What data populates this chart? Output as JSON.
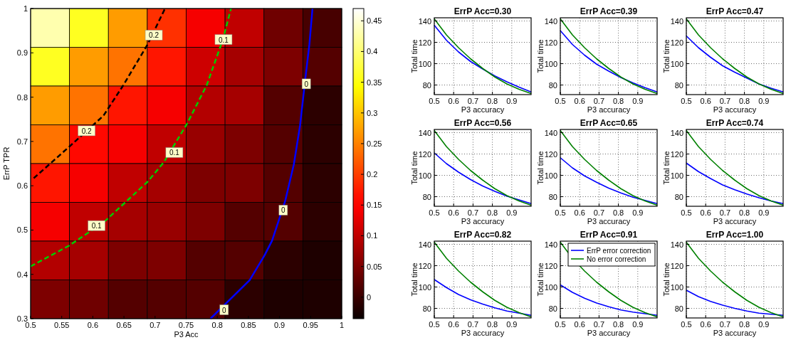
{
  "chart_data": [
    {
      "type": "heatmap",
      "xlabel": "P3 Acc",
      "ylabel": "ErrP TPR",
      "cells": [
        [
          0.43,
          0.36,
          0.27,
          0.19,
          0.14,
          0.1,
          0.04,
          0.01
        ],
        [
          0.36,
          0.27,
          0.24,
          0.17,
          0.11,
          0.08,
          0.05,
          0.02
        ],
        [
          0.27,
          0.24,
          0.17,
          0.14,
          0.09,
          0.08,
          0.02,
          -0.01
        ],
        [
          0.24,
          0.16,
          0.14,
          0.1,
          0.07,
          0.05,
          0.02,
          -0.01
        ],
        [
          0.17,
          0.14,
          0.1,
          0.08,
          0.05,
          0.05,
          0.02,
          -0.01
        ],
        [
          0.14,
          0.1,
          0.08,
          0.07,
          0.05,
          0.02,
          0.02,
          -0.01
        ],
        [
          0.09,
          0.08,
          0.05,
          0.05,
          0.02,
          0.02,
          -0.01,
          -0.02
        ],
        [
          0.05,
          0.04,
          0.02,
          0.02,
          0.02,
          -0.01,
          -0.02,
          -0.02
        ]
      ],
      "xlim": [
        0.5,
        1
      ],
      "xticks": [
        0.5,
        0.55,
        0.6,
        0.65,
        0.7,
        0.75,
        0.8,
        0.85,
        0.9,
        0.95,
        1
      ],
      "ylim": [
        0.3,
        1
      ],
      "yticks": [
        0.3,
        0.4,
        0.5,
        0.6,
        0.7,
        0.8,
        0.9,
        1
      ],
      "clim": [
        -0.035,
        0.47
      ],
      "cticks": [
        0,
        0.05,
        0.1,
        0.15,
        0.2,
        0.25,
        0.3,
        0.35,
        0.4,
        0.45
      ],
      "series": [
        {
          "type": "line",
          "color": "#000000",
          "line_style": "dashed",
          "x": [
            0.505,
            0.562,
            0.617,
            0.649,
            0.688,
            0.716
          ],
          "values": [
            0.617,
            0.688,
            0.758,
            0.827,
            0.919,
            1.0
          ]
        },
        {
          "type": "line",
          "color": "#00cc00",
          "line_style": "dashed",
          "x": [
            0.5,
            0.562,
            0.617,
            0.688,
            0.714,
            0.751,
            0.783,
            0.809,
            0.822
          ],
          "values": [
            0.418,
            0.465,
            0.517,
            0.609,
            0.653,
            0.739,
            0.827,
            0.93,
            1.0
          ]
        },
        {
          "type": "line",
          "color": "#0000ff",
          "line_style": "solid",
          "x": [
            0.789,
            0.852,
            0.876,
            0.888,
            0.909,
            0.923,
            0.933,
            0.941,
            0.948,
            0.953
          ],
          "values": [
            0.3,
            0.387,
            0.443,
            0.476,
            0.565,
            0.648,
            0.736,
            0.836,
            0.919,
            1.0
          ]
        }
      ],
      "annotations": [
        {
          "text": "0.2",
          "x": 0.698,
          "y": 0.94
        },
        {
          "text": "0.2",
          "x": 0.59,
          "y": 0.724
        },
        {
          "text": "0.1",
          "x": 0.81,
          "y": 0.93
        },
        {
          "text": "0.1",
          "x": 0.731,
          "y": 0.675
        },
        {
          "text": "0.1",
          "x": 0.606,
          "y": 0.51
        },
        {
          "text": "0",
          "x": 0.943,
          "y": 0.83
        },
        {
          "text": "0",
          "x": 0.906,
          "y": 0.545
        },
        {
          "text": "0",
          "x": 0.811,
          "y": 0.32
        }
      ]
    },
    {
      "type": "line",
      "title": "ErrP Acc=0.30",
      "xlabel": "P3 accuracy",
      "ylabel": "Total time",
      "x": [
        0.5,
        0.5625,
        0.625,
        0.6875,
        0.75,
        0.8125,
        0.875,
        0.9375,
        1.0
      ],
      "xlim": [
        0.5,
        1
      ],
      "xticks": [
        0.5,
        0.6,
        0.7,
        0.8,
        0.9
      ],
      "ylim": [
        71,
        143
      ],
      "yticks": [
        80,
        100,
        120,
        140
      ],
      "grid": true,
      "series": [
        {
          "color": "#0000ff",
          "values": [
            136,
            122,
            111,
            102,
            95,
            88.5,
            83,
            78,
            73.5
          ]
        },
        {
          "color": "#008000",
          "values": [
            142,
            127,
            115,
            104.5,
            95.5,
            87.5,
            81,
            76,
            72
          ]
        }
      ]
    },
    {
      "type": "line",
      "title": "ErrP Acc=0.39",
      "xlabel": "P3 accuracy",
      "ylabel": "Total time",
      "x": [
        0.5,
        0.5625,
        0.625,
        0.6875,
        0.75,
        0.8125,
        0.875,
        0.9375,
        1.0
      ],
      "xlim": [
        0.5,
        1
      ],
      "xticks": [
        0.5,
        0.6,
        0.7,
        0.8,
        0.9
      ],
      "ylim": [
        71,
        143
      ],
      "yticks": [
        80,
        100,
        120,
        140
      ],
      "grid": true,
      "series": [
        {
          "color": "#0000ff",
          "values": [
            131,
            118,
            108,
            99.5,
            93,
            87,
            82,
            77.5,
            73.5
          ]
        },
        {
          "color": "#008000",
          "values": [
            142,
            127,
            115,
            104.5,
            95.5,
            87.5,
            81,
            76,
            72
          ]
        }
      ]
    },
    {
      "type": "line",
      "title": "ErrP Acc=0.47",
      "xlabel": "P3 accuracy",
      "ylabel": "Total time",
      "x": [
        0.5,
        0.5625,
        0.625,
        0.6875,
        0.75,
        0.8125,
        0.875,
        0.9375,
        1.0
      ],
      "xlim": [
        0.5,
        1
      ],
      "xticks": [
        0.5,
        0.6,
        0.7,
        0.8,
        0.9
      ],
      "ylim": [
        71,
        143
      ],
      "yticks": [
        80,
        100,
        120,
        140
      ],
      "grid": true,
      "series": [
        {
          "color": "#0000ff",
          "values": [
            126,
            115,
            106,
            98,
            92,
            86.5,
            81,
            77,
            73.5
          ]
        },
        {
          "color": "#008000",
          "values": [
            142,
            127,
            115,
            104.5,
            95.5,
            87.5,
            81,
            76,
            72
          ]
        }
      ]
    },
    {
      "type": "line",
      "title": "ErrP Acc=0.56",
      "xlabel": "P3 accuracy",
      "ylabel": "Total time",
      "x": [
        0.5,
        0.5625,
        0.625,
        0.6875,
        0.75,
        0.8125,
        0.875,
        0.9375,
        1.0
      ],
      "xlim": [
        0.5,
        1
      ],
      "xticks": [
        0.5,
        0.6,
        0.7,
        0.8,
        0.9
      ],
      "ylim": [
        71,
        143
      ],
      "yticks": [
        80,
        100,
        120,
        140
      ],
      "grid": true,
      "series": [
        {
          "color": "#0000ff",
          "values": [
            121,
            111,
            103,
            96,
            90,
            85,
            80.5,
            77,
            73.5
          ]
        },
        {
          "color": "#008000",
          "values": [
            142,
            127,
            115,
            104.5,
            95.5,
            87.5,
            81,
            76,
            72
          ]
        }
      ]
    },
    {
      "type": "line",
      "title": "ErrP Acc=0.65",
      "xlabel": "P3 accuracy",
      "ylabel": "Total time",
      "x": [
        0.5,
        0.5625,
        0.625,
        0.6875,
        0.75,
        0.8125,
        0.875,
        0.9375,
        1.0
      ],
      "xlim": [
        0.5,
        1
      ],
      "xticks": [
        0.5,
        0.6,
        0.7,
        0.8,
        0.9
      ],
      "ylim": [
        71,
        143
      ],
      "yticks": [
        80,
        100,
        120,
        140
      ],
      "grid": true,
      "series": [
        {
          "color": "#0000ff",
          "values": [
            116.5,
            107,
            99.5,
            93.5,
            88,
            83.5,
            79.5,
            76.5,
            73.5
          ]
        },
        {
          "color": "#008000",
          "values": [
            142,
            127,
            115,
            104.5,
            95.5,
            87.5,
            81,
            76,
            72
          ]
        }
      ]
    },
    {
      "type": "line",
      "title": "ErrP Acc=0.74",
      "xlabel": "P3 accuracy",
      "ylabel": "Total time",
      "x": [
        0.5,
        0.5625,
        0.625,
        0.6875,
        0.75,
        0.8125,
        0.875,
        0.9375,
        1.0
      ],
      "xlim": [
        0.5,
        1
      ],
      "xticks": [
        0.5,
        0.6,
        0.7,
        0.8,
        0.9
      ],
      "ylim": [
        71,
        143
      ],
      "yticks": [
        80,
        100,
        120,
        140
      ],
      "grid": true,
      "series": [
        {
          "color": "#0000ff",
          "values": [
            111.5,
            103.5,
            97,
            91,
            86.5,
            82.5,
            79,
            76,
            73.5
          ]
        },
        {
          "color": "#008000",
          "values": [
            142,
            127,
            115,
            104.5,
            95.5,
            87.5,
            81,
            76,
            72
          ]
        }
      ]
    },
    {
      "type": "line",
      "title": "ErrP Acc=0.82",
      "xlabel": "P3 accuracy",
      "ylabel": "Total time",
      "x": [
        0.5,
        0.5625,
        0.625,
        0.6875,
        0.75,
        0.8125,
        0.875,
        0.9375,
        1.0
      ],
      "xlim": [
        0.5,
        1
      ],
      "xticks": [
        0.5,
        0.6,
        0.7,
        0.8,
        0.9
      ],
      "ylim": [
        71,
        143
      ],
      "yticks": [
        80,
        100,
        120,
        140
      ],
      "grid": true,
      "series": [
        {
          "color": "#0000ff",
          "values": [
            107,
            99.5,
            93,
            88,
            84,
            80.5,
            77.5,
            75.5,
            73.5
          ]
        },
        {
          "color": "#008000",
          "values": [
            142,
            127,
            115,
            104.5,
            95.5,
            87.5,
            81,
            76,
            72
          ]
        }
      ]
    },
    {
      "type": "line",
      "title": "ErrP Acc=0.91",
      "xlabel": "P3 accuracy",
      "ylabel": "Total time",
      "x": [
        0.5,
        0.5625,
        0.625,
        0.6875,
        0.75,
        0.8125,
        0.875,
        0.9375,
        1.0
      ],
      "xlim": [
        0.5,
        1
      ],
      "xticks": [
        0.5,
        0.6,
        0.7,
        0.8,
        0.9
      ],
      "ylim": [
        71,
        143
      ],
      "yticks": [
        80,
        100,
        120,
        140
      ],
      "grid": true,
      "legend": "top right",
      "series": [
        {
          "name": "ErrP error correction",
          "color": "#0000ff",
          "values": [
            102,
            95,
            89.5,
            85,
            81.5,
            78.5,
            76.5,
            75,
            73.5
          ]
        },
        {
          "name": "No error correction",
          "color": "#008000",
          "values": [
            142,
            127,
            115,
            104.5,
            95.5,
            87.5,
            81,
            76,
            72
          ]
        }
      ]
    },
    {
      "type": "line",
      "title": "ErrP Acc=1.00",
      "xlabel": "P3 accuracy",
      "ylabel": "Total time",
      "x": [
        0.5,
        0.5625,
        0.625,
        0.6875,
        0.75,
        0.8125,
        0.875,
        0.9375,
        1.0
      ],
      "xlim": [
        0.5,
        1
      ],
      "xticks": [
        0.5,
        0.6,
        0.7,
        0.8,
        0.9
      ],
      "ylim": [
        71,
        143
      ],
      "yticks": [
        80,
        100,
        120,
        140
      ],
      "grid": true,
      "series": [
        {
          "color": "#0000ff",
          "values": [
            97,
            91,
            86.5,
            83,
            80,
            77.5,
            75.5,
            74.5,
            73.5
          ]
        },
        {
          "color": "#008000",
          "values": [
            142,
            127,
            115,
            104.5,
            95.5,
            87.5,
            81,
            76,
            72
          ]
        }
      ]
    }
  ]
}
